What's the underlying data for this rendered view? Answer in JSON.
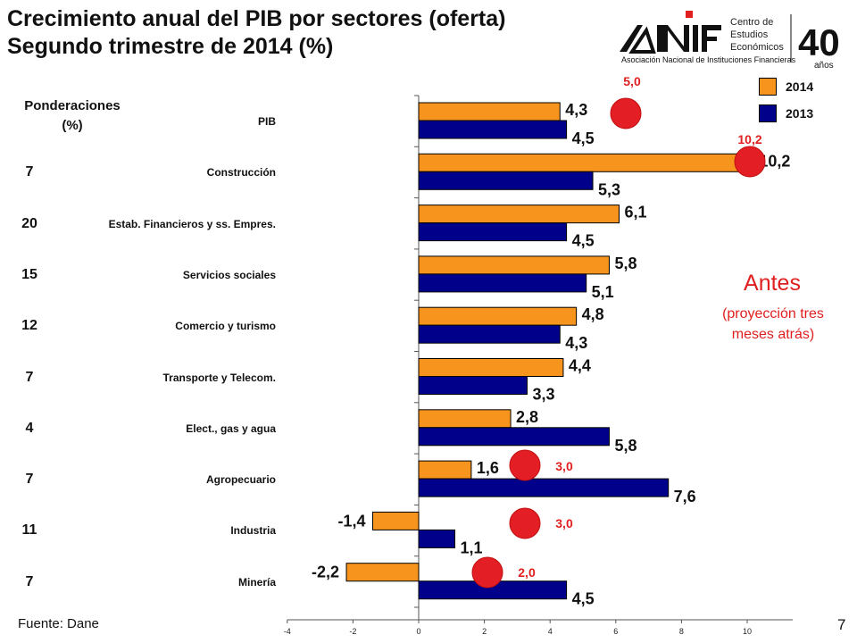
{
  "slide": {
    "title_line1": "Crecimiento anual del PIB por sectores (oferta)",
    "title_line2": "Segundo trimestre de 2014 (%)",
    "source": "Fuente: Dane",
    "page_number": "7"
  },
  "logo": {
    "brand": "ANIF",
    "tagline": "Asociación Nacional de Instituciones Financieras",
    "center_line1": "Centro de",
    "center_line2": "Estudios",
    "center_line3": "Económicos",
    "anniversary_number": "40",
    "anniversary_word": "años"
  },
  "ponderaciones": {
    "header_line1": "Ponderaciones",
    "header_line2": "(%)",
    "values": [
      "7",
      "20",
      "15",
      "12",
      "7",
      "4",
      "7",
      "11",
      "7"
    ]
  },
  "annotation": {
    "title": "Antes",
    "subtitle_line1": "(proyección tres",
    "subtitle_line2": "meses atrás)"
  },
  "chart_data": {
    "type": "bar",
    "orientation": "horizontal",
    "categories": [
      "PIB",
      "Construcción",
      "Estab. Financieros y ss. Empres.",
      "Servicios sociales",
      "Comercio y turismo",
      "Transporte y Telecom.",
      "Elect., gas y agua",
      "Agropecuario",
      "Industria",
      "Minería"
    ],
    "series": [
      {
        "name": "2014",
        "color": "#F7941D",
        "values": [
          4.3,
          10.2,
          6.1,
          5.8,
          4.8,
          4.4,
          2.8,
          1.6,
          -1.4,
          -2.2
        ],
        "labels": [
          "4,3",
          "10,2",
          "6,1",
          "5,8",
          "4,8",
          "4,4",
          "2,8",
          "1,6",
          "-1,4",
          "-2,2"
        ]
      },
      {
        "name": "2013",
        "color": "#00008B",
        "values": [
          4.5,
          5.3,
          4.5,
          5.1,
          4.3,
          3.3,
          5.8,
          7.6,
          1.1,
          4.5
        ],
        "labels": [
          "4,5",
          "5,3",
          "4,5",
          "5,1",
          "4,3",
          "3,3",
          "5,8",
          "7,6",
          "1,1",
          "4,5"
        ]
      }
    ],
    "previous_projection": [
      {
        "category": "PIB",
        "value": 5.0,
        "label": "5,0"
      },
      {
        "category": "Construcción",
        "value": 10.2,
        "label": "10,2"
      },
      {
        "category": "Agropecuario",
        "value": 3.0,
        "label": "3,0"
      },
      {
        "category": "Industria",
        "value": 3.0,
        "label": "3,0"
      },
      {
        "category": "Minería",
        "value": 2.0,
        "label": "2,0"
      }
    ],
    "marker_color": "#E31E24",
    "xlim": [
      -4,
      11
    ],
    "xticks": [
      "-4",
      "-2",
      "0",
      "2",
      "4",
      "6",
      "8",
      "10"
    ],
    "xlabel": "",
    "ylabel": "",
    "grid": false,
    "legend_position": "top-right"
  }
}
